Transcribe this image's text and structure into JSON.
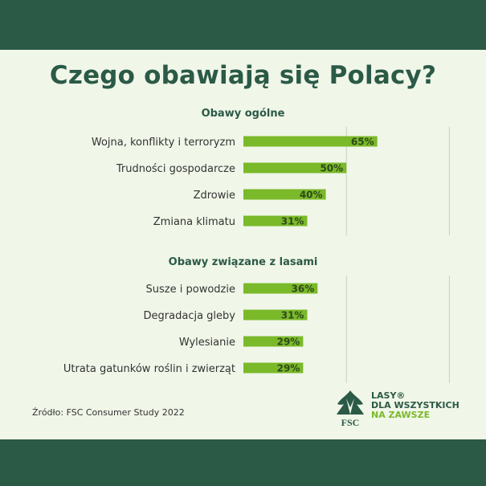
{
  "title": "Czego obawiają się Polacy?",
  "source": "Źródło: FSC Consumer Study 2022",
  "logo": {
    "mark_text": "FSC",
    "line1": "LASY®",
    "line2": "DLA WSZYSTKICH",
    "line3": "NA ZAWSZE"
  },
  "colors": {
    "band": "#2b5a47",
    "panel": "#f0f6e8",
    "bar": "#7ab929",
    "accent": "#7aba2a"
  },
  "chart_data": [
    {
      "type": "bar",
      "orientation": "horizontal",
      "title": "Obawy ogólne",
      "categories": [
        "Wojna, konflikty i terroryzm",
        "Trudności gospodarcze",
        "Zdrowie",
        "Zmiana klimatu"
      ],
      "values": [
        65,
        50,
        40,
        31
      ],
      "value_labels": [
        "65%",
        "50%",
        "40%",
        "31%"
      ],
      "xlim": [
        0,
        100
      ],
      "grid": true
    },
    {
      "type": "bar",
      "orientation": "horizontal",
      "title": "Obawy związane z lasami",
      "categories": [
        "Susze i powodzie",
        "Degradacja gleby",
        "Wylesianie",
        "Utrata gatunków roślin i zwierząt"
      ],
      "values": [
        36,
        31,
        29,
        29
      ],
      "value_labels": [
        "36%",
        "31%",
        "29%",
        "29%"
      ],
      "xlim": [
        0,
        100
      ],
      "grid": true
    }
  ]
}
